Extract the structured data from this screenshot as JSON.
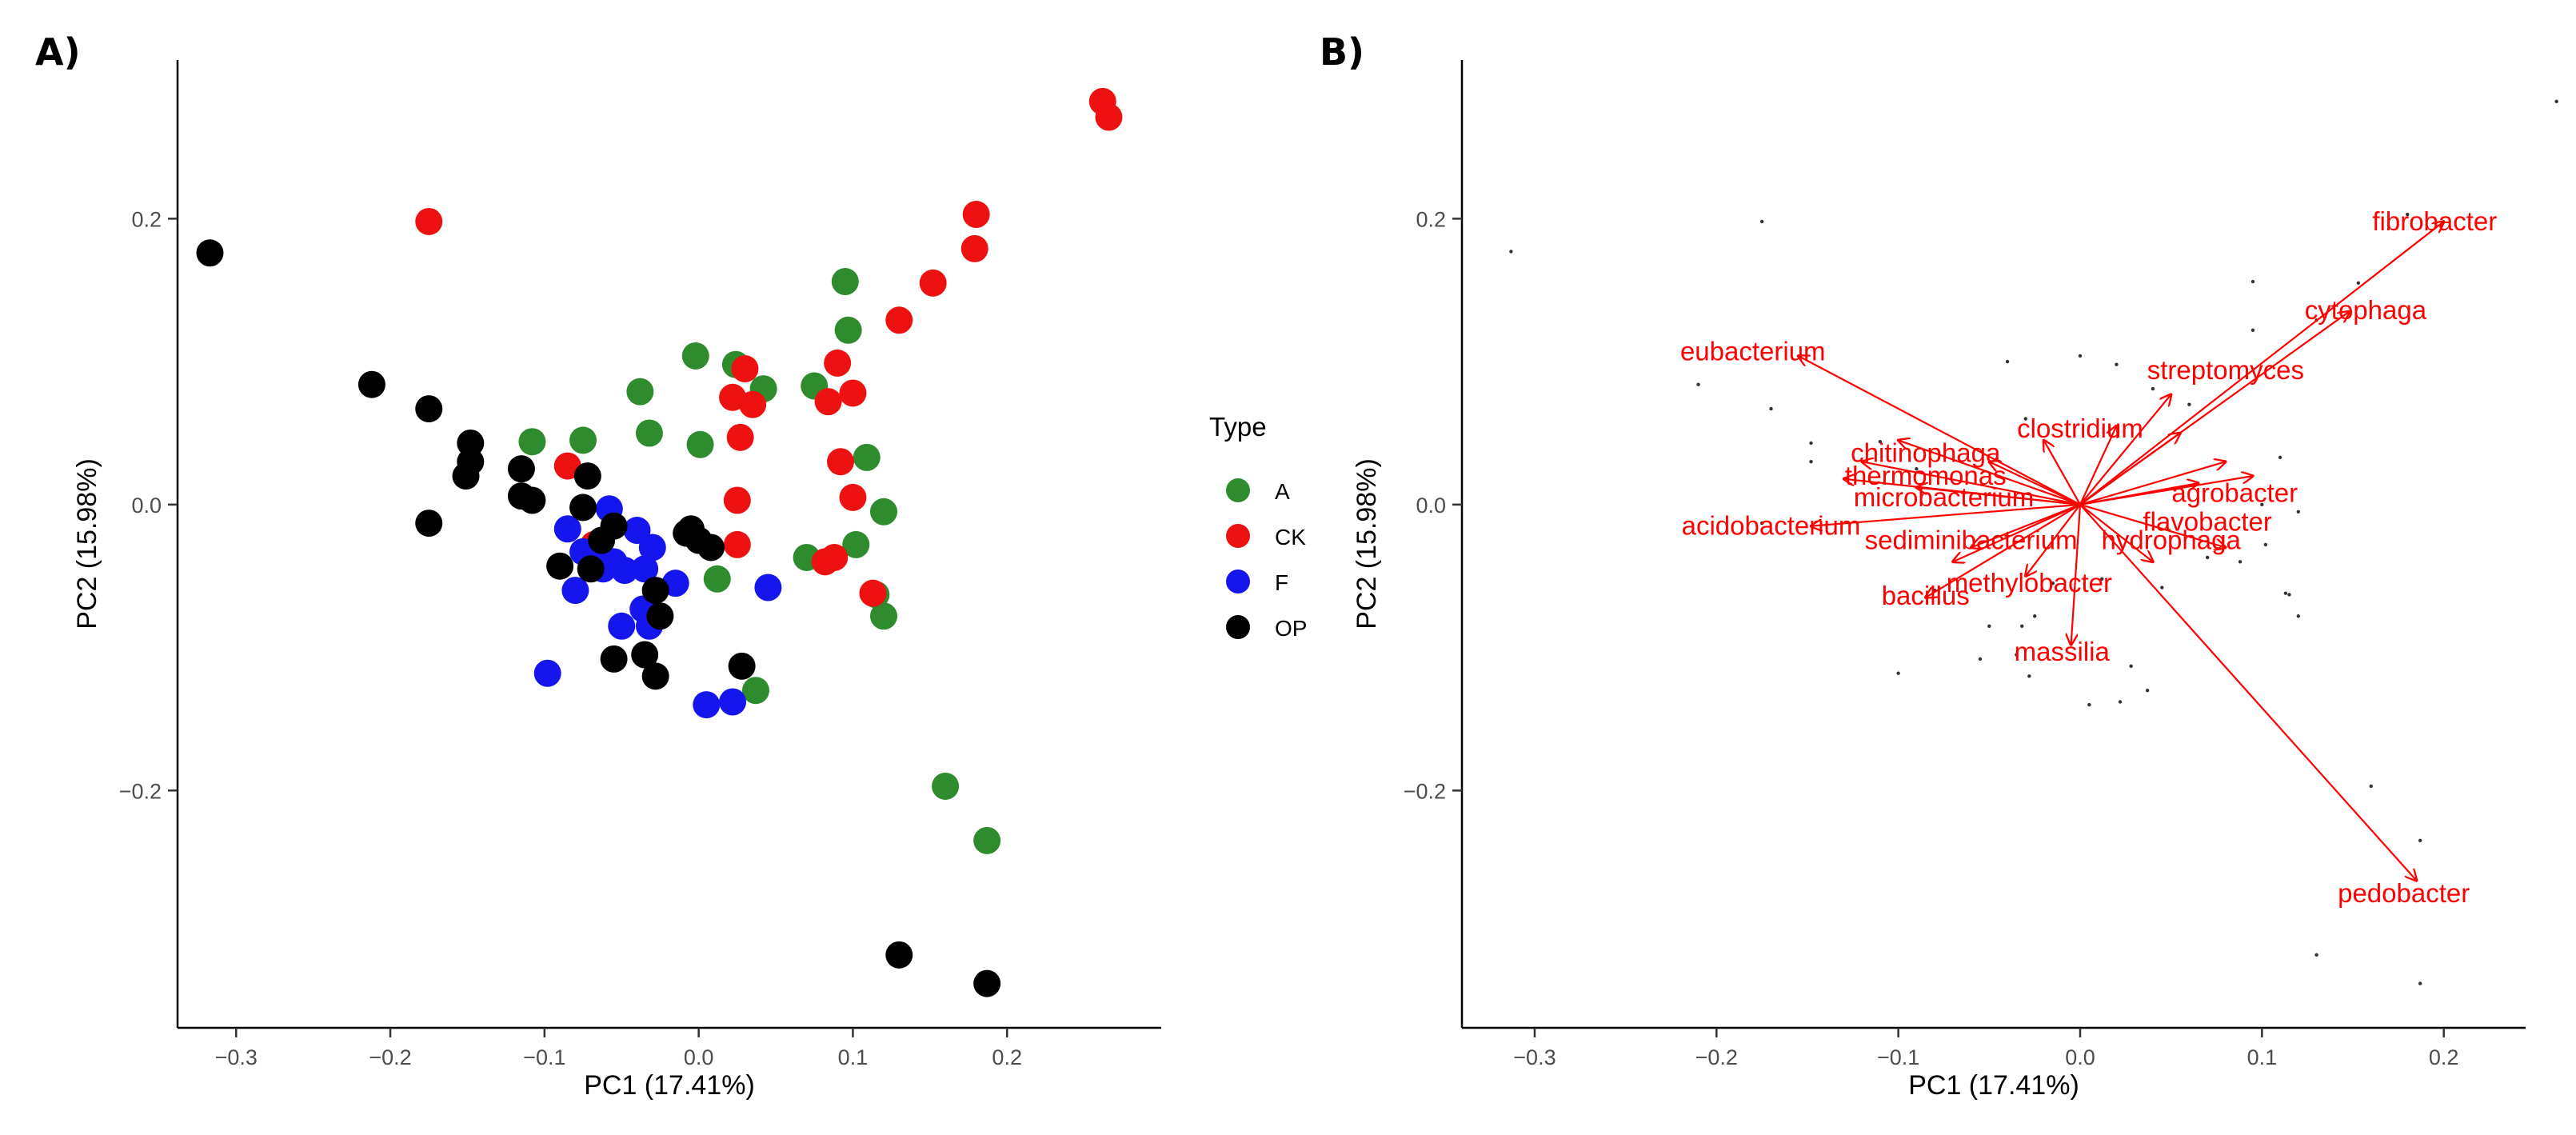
{
  "figure": {
    "panel_a_label": "A)",
    "panel_b_label": "B)"
  },
  "chart_data": [
    {
      "panel": "A)",
      "type": "scatter",
      "xlabel": "PC1 (17.41%)",
      "ylabel": "PC2 (15.98%)",
      "xlim": [
        -0.338,
        0.3
      ],
      "ylim": [
        -0.366,
        0.311
      ],
      "xticks": [
        -0.3,
        -0.2,
        -0.1,
        0.0,
        0.1,
        0.2
      ],
      "xtick_labels": [
        "−0.3",
        "−0.2",
        "−0.1",
        "0.0",
        "0.1",
        "0.2"
      ],
      "yticks": [
        -0.2,
        0.0,
        0.2
      ],
      "ytick_labels": [
        "−0.2",
        "0.0",
        "0.2"
      ],
      "grid": false,
      "legend": {
        "title": "Type",
        "position": "right"
      },
      "series": [
        {
          "name": "A",
          "color": "#2e8b2e",
          "points": [
            [
              0.095,
              0.156
            ],
            [
              0.097,
              0.122
            ],
            [
              -0.002,
              0.104
            ],
            [
              0.024,
              0.098
            ],
            [
              0.042,
              0.081
            ],
            [
              0.075,
              0.083
            ],
            [
              -0.038,
              0.079
            ],
            [
              -0.032,
              0.05
            ],
            [
              -0.075,
              0.045
            ],
            [
              -0.108,
              0.044
            ],
            [
              0.001,
              0.042
            ],
            [
              0.109,
              0.033
            ],
            [
              0.12,
              -0.005
            ],
            [
              0.102,
              -0.028
            ],
            [
              0.07,
              -0.037
            ],
            [
              0.012,
              -0.052
            ],
            [
              0.115,
              -0.063
            ],
            [
              0.12,
              -0.078
            ],
            [
              0.037,
              -0.13
            ],
            [
              0.16,
              -0.197
            ],
            [
              0.187,
              -0.235
            ]
          ]
        },
        {
          "name": "CK",
          "color": "#ee1111",
          "points": [
            [
              0.262,
              0.282
            ],
            [
              0.266,
              0.271
            ],
            [
              0.18,
              0.203
            ],
            [
              0.179,
              0.179
            ],
            [
              0.152,
              0.155
            ],
            [
              0.13,
              0.129
            ],
            [
              -0.175,
              0.198
            ],
            [
              0.09,
              0.099
            ],
            [
              0.1,
              0.078
            ],
            [
              0.03,
              0.095
            ],
            [
              0.022,
              0.075
            ],
            [
              0.035,
              0.07
            ],
            [
              0.084,
              0.072
            ],
            [
              0.027,
              0.047
            ],
            [
              0.092,
              0.03
            ],
            [
              0.1,
              0.005
            ],
            [
              0.025,
              0.003
            ],
            [
              0.025,
              -0.028
            ],
            [
              -0.085,
              0.027
            ],
            [
              -0.068,
              -0.028
            ],
            [
              0.088,
              -0.037
            ],
            [
              0.082,
              -0.04
            ],
            [
              0.113,
              -0.062
            ]
          ]
        },
        {
          "name": "F",
          "color": "#1515ee",
          "points": [
            [
              -0.058,
              -0.003
            ],
            [
              -0.085,
              -0.017
            ],
            [
              -0.04,
              -0.018
            ],
            [
              -0.03,
              -0.03
            ],
            [
              -0.075,
              -0.033
            ],
            [
              -0.065,
              -0.033
            ],
            [
              -0.055,
              -0.04
            ],
            [
              -0.062,
              -0.045
            ],
            [
              -0.048,
              -0.046
            ],
            [
              -0.035,
              -0.045
            ],
            [
              -0.015,
              -0.055
            ],
            [
              -0.08,
              -0.06
            ],
            [
              -0.036,
              -0.073
            ],
            [
              -0.05,
              -0.085
            ],
            [
              -0.032,
              -0.085
            ],
            [
              -0.098,
              -0.118
            ],
            [
              0.045,
              -0.058
            ],
            [
              0.005,
              -0.14
            ],
            [
              0.022,
              -0.138
            ]
          ]
        },
        {
          "name": "OP",
          "color": "#000000",
          "points": [
            [
              -0.317,
              0.176
            ],
            [
              -0.212,
              0.084
            ],
            [
              -0.175,
              0.067
            ],
            [
              -0.148,
              0.043
            ],
            [
              -0.148,
              0.03
            ],
            [
              -0.151,
              0.02
            ],
            [
              -0.115,
              0.025
            ],
            [
              -0.115,
              0.006
            ],
            [
              -0.108,
              0.003
            ],
            [
              -0.072,
              0.02
            ],
            [
              -0.075,
              -0.002
            ],
            [
              -0.055,
              -0.015
            ],
            [
              -0.063,
              -0.025
            ],
            [
              -0.09,
              -0.043
            ],
            [
              -0.07,
              -0.045
            ],
            [
              -0.005,
              -0.017
            ],
            [
              0.0,
              -0.025
            ],
            [
              0.008,
              -0.03
            ],
            [
              -0.008,
              -0.02
            ],
            [
              -0.028,
              -0.06
            ],
            [
              -0.025,
              -0.078
            ],
            [
              -0.055,
              -0.108
            ],
            [
              -0.035,
              -0.105
            ],
            [
              -0.028,
              -0.12
            ],
            [
              0.028,
              -0.113
            ],
            [
              -0.175,
              -0.013
            ],
            [
              0.13,
              -0.315
            ],
            [
              0.187,
              -0.335
            ]
          ]
        }
      ]
    },
    {
      "panel": "B)",
      "type": "scatter",
      "subtype": "biplot",
      "xlabel": "PC1 (17.41%)",
      "ylabel": "PC2 (15.98%)",
      "xlim": [
        -0.34,
        0.245
      ],
      "ylim": [
        -0.366,
        0.311
      ],
      "xticks": [
        -0.3,
        -0.2,
        -0.1,
        0.0,
        0.1,
        0.2
      ],
      "xtick_labels": [
        "−0.3",
        "−0.2",
        "−0.1",
        "0.0",
        "0.1",
        "0.2"
      ],
      "yticks": [
        -0.2,
        0.0,
        0.2
      ],
      "ytick_labels": [
        "−0.2",
        "0.0",
        "0.2"
      ],
      "grid": false,
      "arrow_color": "#ff0000",
      "labeled_arrows": [
        {
          "label": "fibrobacter",
          "x": 0.2,
          "y": 0.198,
          "label_x": 0.195,
          "label_y": 0.198
        },
        {
          "label": "cytophaga",
          "x": 0.148,
          "y": 0.135,
          "label_x": 0.157,
          "label_y": 0.136
        },
        {
          "label": "streptomyces",
          "x": 0.05,
          "y": 0.077,
          "label_x": 0.08,
          "label_y": 0.094
        },
        {
          "label": "eubacterium",
          "x": -0.155,
          "y": 0.104,
          "label_x": -0.18,
          "label_y": 0.107
        },
        {
          "label": "acidobacterium",
          "x": -0.148,
          "y": -0.015,
          "label_x": -0.17,
          "label_y": -0.015
        },
        {
          "label": "pedobacter",
          "x": 0.185,
          "y": -0.263,
          "label_x": 0.178,
          "label_y": -0.272
        },
        {
          "label": "massilia",
          "x": -0.005,
          "y": -0.098,
          "label_x": -0.01,
          "label_y": -0.103
        },
        {
          "label": "bacillus",
          "x": -0.085,
          "y": -0.065,
          "label_x": -0.085,
          "label_y": -0.064
        }
      ],
      "overlapping_labels": [
        {
          "label": "clostridium",
          "label_x": 0.0,
          "label_y": 0.053
        },
        {
          "label": "chitinophaga",
          "label_x": -0.085,
          "label_y": 0.036
        },
        {
          "label": "thermomonas",
          "label_x": -0.085,
          "label_y": 0.02
        },
        {
          "label": "microbacterium",
          "label_x": -0.075,
          "label_y": 0.005
        },
        {
          "label": "sediminibacterium",
          "label_x": -0.06,
          "label_y": -0.025
        },
        {
          "label": "methylobacter",
          "label_x": -0.028,
          "label_y": -0.055
        },
        {
          "label": "agrobacter",
          "label_x": 0.085,
          "label_y": 0.008
        },
        {
          "label": "flavobacter",
          "label_x": 0.07,
          "label_y": -0.012
        },
        {
          "label": "hydrophaga",
          "label_x": 0.05,
          "label_y": -0.025
        }
      ],
      "unlabeled_arrows": [
        [
          -0.1,
          0.045
        ],
        [
          -0.12,
          0.03
        ],
        [
          -0.13,
          0.018
        ],
        [
          -0.09,
          0.012
        ],
        [
          0.08,
          0.03
        ],
        [
          0.095,
          0.02
        ],
        [
          0.08,
          -0.03
        ],
        [
          -0.07,
          -0.04
        ],
        [
          0.055,
          0.05
        ],
        [
          0.04,
          -0.04
        ],
        [
          -0.02,
          0.045
        ],
        [
          0.02,
          0.055
        ],
        [
          -0.05,
          0.03
        ],
        [
          0.065,
          0.015
        ],
        [
          -0.06,
          -0.03
        ],
        [
          -0.03,
          -0.05
        ]
      ],
      "points": [
        [
          -0.313,
          0.177
        ],
        [
          -0.175,
          0.198
        ],
        [
          -0.21,
          0.084
        ],
        [
          -0.17,
          0.067
        ],
        [
          -0.148,
          0.043
        ],
        [
          -0.148,
          0.03
        ],
        [
          -0.11,
          0.044
        ],
        [
          -0.09,
          0.025
        ],
        [
          0.0,
          0.104
        ],
        [
          0.02,
          0.098
        ],
        [
          0.04,
          0.081
        ],
        [
          0.095,
          0.156
        ],
        [
          0.095,
          0.122
        ],
        [
          0.1,
          0.0
        ],
        [
          0.11,
          0.033
        ],
        [
          0.12,
          -0.005
        ],
        [
          0.102,
          -0.028
        ],
        [
          0.115,
          -0.063
        ],
        [
          0.12,
          -0.078
        ],
        [
          0.16,
          -0.197
        ],
        [
          0.187,
          -0.235
        ],
        [
          0.13,
          -0.315
        ],
        [
          0.187,
          -0.335
        ],
        [
          0.18,
          0.203
        ],
        [
          0.153,
          0.155
        ],
        [
          0.13,
          0.129
        ],
        [
          0.262,
          0.282
        ],
        [
          -0.1,
          -0.118
        ],
        [
          0.005,
          -0.14
        ],
        [
          0.022,
          -0.138
        ],
        [
          0.037,
          -0.13
        ],
        [
          -0.055,
          -0.108
        ],
        [
          -0.035,
          -0.105
        ],
        [
          -0.028,
          -0.12
        ],
        [
          0.028,
          -0.113
        ],
        [
          -0.175,
          -0.013
        ],
        [
          0.045,
          -0.058
        ],
        [
          0.012,
          -0.052
        ],
        [
          0.07,
          -0.037
        ],
        [
          0.088,
          -0.04
        ],
        [
          0.113,
          -0.062
        ],
        [
          -0.05,
          -0.085
        ],
        [
          -0.032,
          -0.085
        ],
        [
          -0.025,
          -0.078
        ],
        [
          -0.08,
          -0.06
        ],
        [
          -0.015,
          -0.055
        ],
        [
          -0.04,
          0.1
        ],
        [
          0.06,
          0.07
        ],
        [
          -0.03,
          0.06
        ]
      ]
    }
  ]
}
